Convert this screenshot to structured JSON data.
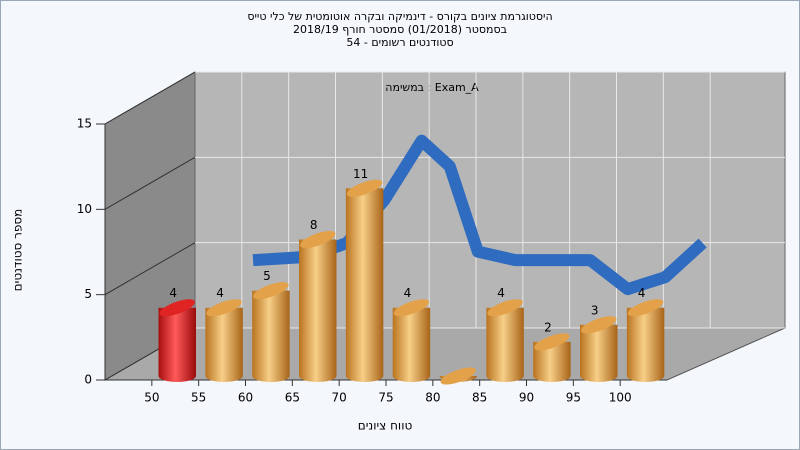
{
  "chart_data": {
    "type": "histogram",
    "title": "היסטוגרמת ציונים בקורס - דינמיקה ובקרה אוטומטית של כלי טייס",
    "subtitle": "בסמסטר  (01/2018)  סמסטר חורף 2018/19",
    "subtitle2": "סטודנטים רשומים - 54",
    "annotation": "במשימה : Exam_A",
    "x_label": "טווח ציונים",
    "y_label": "מספר סטודנטים",
    "bins": [
      50,
      55,
      60,
      65,
      70,
      75,
      80,
      85,
      90,
      95,
      100,
      105
    ],
    "values": [
      4,
      4,
      5,
      8,
      11,
      4,
      0,
      4,
      2,
      3,
      4
    ],
    "colors": [
      "#e02424",
      "#e3a24a",
      "#e3a24a",
      "#e3a24a",
      "#e3a24a",
      "#e3a24a",
      "#e3a24a",
      "#e3a24a",
      "#e3a24a",
      "#e3a24a",
      "#e3a24a"
    ],
    "curve": {
      "color": "#2f6cc0",
      "x": [
        56,
        62,
        66,
        70,
        74,
        77,
        80,
        84,
        88,
        92,
        96,
        100,
        104
      ],
      "values": [
        5.5,
        5.7,
        6.5,
        9,
        12.5,
        11,
        6,
        5.5,
        5.5,
        5.5,
        3.8,
        4.5,
        6.5
      ]
    },
    "xlim": [
      45,
      105
    ],
    "xticks": [
      50,
      55,
      60,
      65,
      70,
      75,
      80,
      85,
      90,
      95,
      100
    ],
    "ylim": [
      0,
      15
    ],
    "yticks": [
      0,
      5,
      10,
      15
    ],
    "grid": true
  }
}
